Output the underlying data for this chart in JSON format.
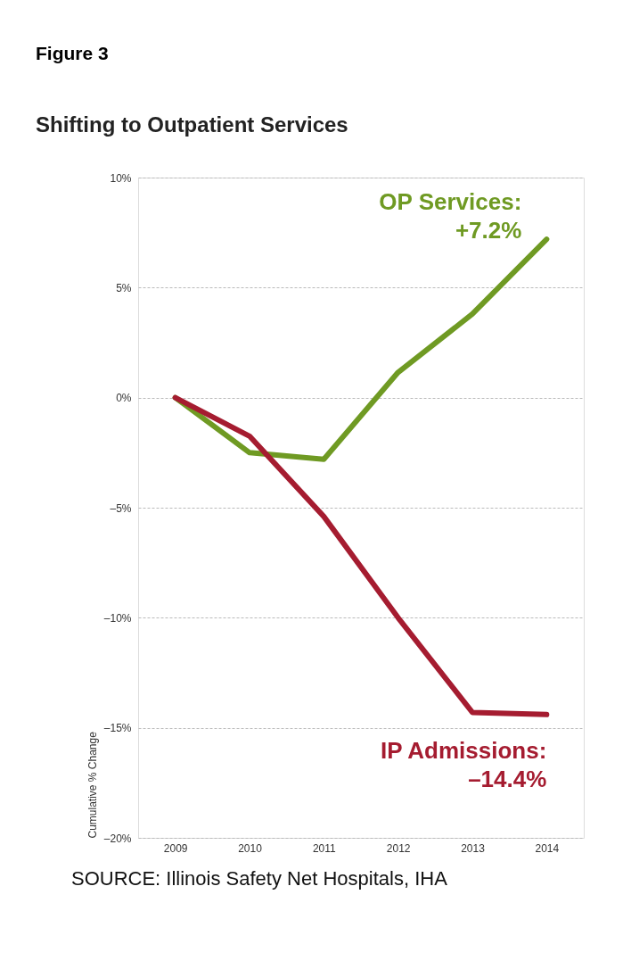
{
  "chart_data": {
    "type": "line",
    "title": "Figure 3",
    "subtitle": "Shifting to Outpatient Services",
    "ylabel": "Cumulative % Change",
    "categories": [
      "2009",
      "2010",
      "2011",
      "2012",
      "2013",
      "2014"
    ],
    "series": [
      {
        "color": "#6f9a23",
        "values": [
          0,
          -2.5,
          -2.8,
          1.15,
          3.8,
          7.2
        ]
      },
      {
        "color": "#a51c30",
        "values": [
          0,
          -1.75,
          -5.4,
          -10.0,
          -14.3,
          -14.4
        ]
      }
    ],
    "ylim": [
      -20,
      10
    ],
    "yticks": [
      {
        "value": 10,
        "label": "10%"
      },
      {
        "value": 5,
        "label": "5%"
      },
      {
        "value": 0,
        "label": "0%"
      },
      {
        "value": -5,
        "label": "–5%"
      },
      {
        "value": -10,
        "label": "–10%"
      },
      {
        "value": -15,
        "label": "–15%"
      },
      {
        "value": -20,
        "label": "–20%"
      }
    ],
    "grid": "y",
    "marker": "none",
    "line_style": "solid",
    "annotations": [
      {
        "text": "OP Services:\n+7.2%",
        "x": "2014",
        "y": 7.2
      },
      {
        "text": "IP Admissions:\n–14.4%",
        "x": "2014",
        "y": -14.4
      },
      "SOURCE: Illinois Safety Net Hospitals, IHA"
    ]
  }
}
